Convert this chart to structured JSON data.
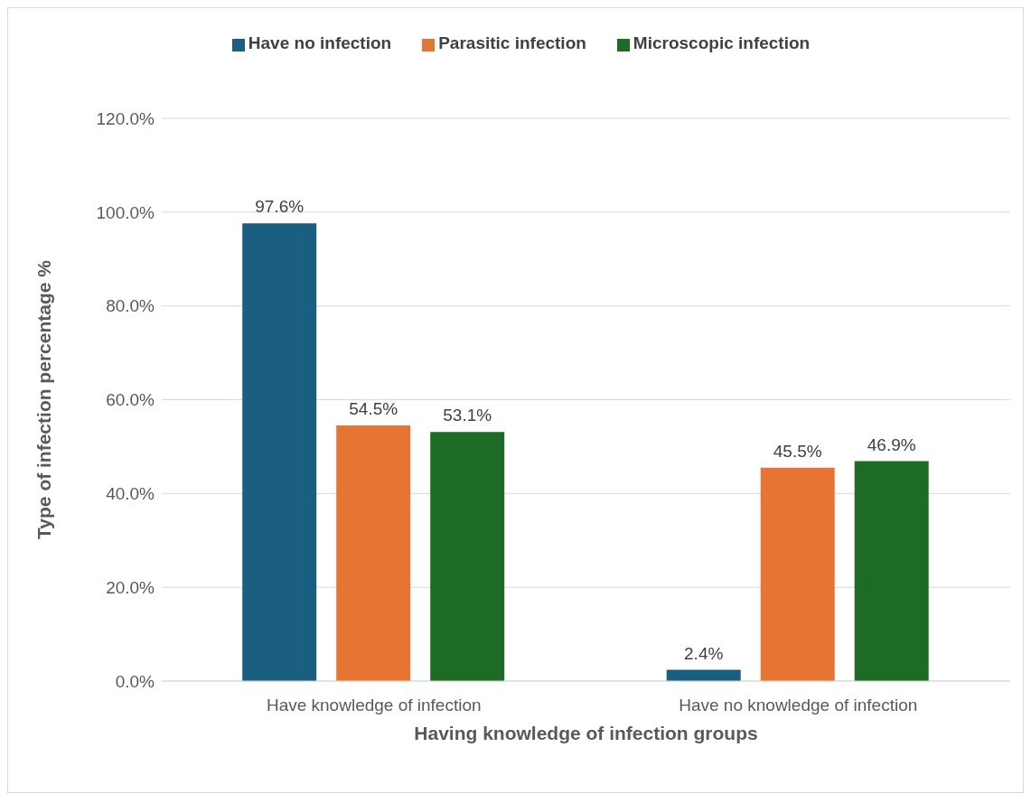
{
  "chart_data": {
    "type": "bar",
    "xlabel": "Having knowledge of infection groups",
    "ylabel": "Type of infection percentage %",
    "categories": [
      "Have knowledge of infection",
      "Have no knowledge of infection"
    ],
    "series": [
      {
        "name": "Have no infection",
        "color": "#1a5f82",
        "values": [
          97.6,
          2.4
        ],
        "value_labels": [
          "97.6%",
          "2.4%"
        ]
      },
      {
        "name": "Parasitic infection",
        "color": "#e87433",
        "values": [
          54.5,
          45.5
        ],
        "value_labels": [
          "54.5%",
          "45.5%"
        ]
      },
      {
        "name": "Microscopic infection",
        "color": "#1e6b25",
        "values": [
          53.1,
          46.9
        ],
        "value_labels": [
          "53.1%",
          "46.9%"
        ]
      }
    ],
    "ylim": [
      0,
      120
    ],
    "yticks": [
      {
        "value": 0,
        "label": "0.0%"
      },
      {
        "value": 20,
        "label": "20.0%"
      },
      {
        "value": 40,
        "label": "40.0%"
      },
      {
        "value": 60,
        "label": "60.0%"
      },
      {
        "value": 80,
        "label": "80.0%"
      },
      {
        "value": 100,
        "label": "100.0%"
      },
      {
        "value": 120,
        "label": "120.0%"
      }
    ],
    "grid": "y",
    "legend": "top"
  }
}
